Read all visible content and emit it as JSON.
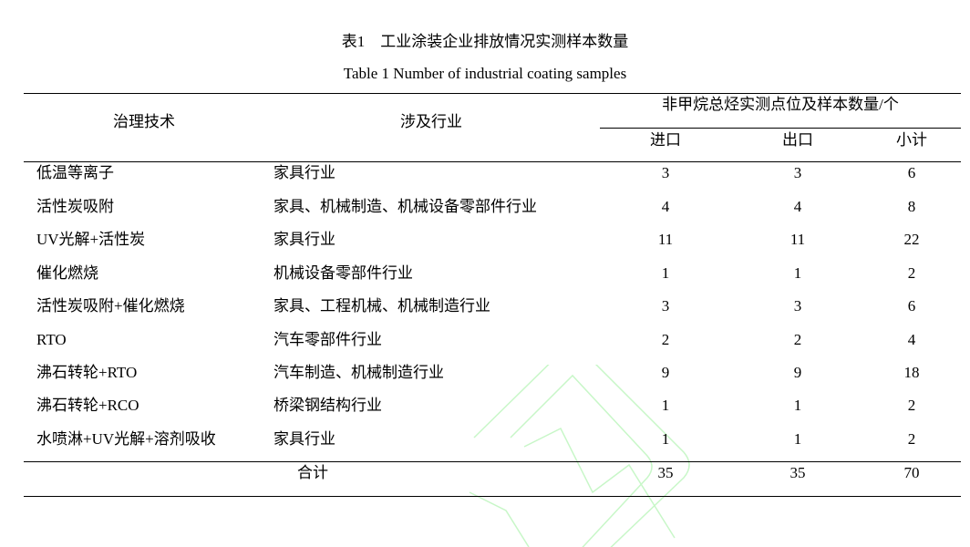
{
  "caption": {
    "cn": "表1　工业涂装企业排放情况实测样本数量",
    "en": "Table 1 Number of industrial coating samples"
  },
  "header": {
    "tech": "治理技术",
    "industry": "涉及行业",
    "group": "非甲烷总烃实测点位及样本数量/个",
    "inlet": "进口",
    "outlet": "出口",
    "subtotal": "小计"
  },
  "rows": [
    {
      "tech": "低温等离子",
      "industry": "家具行业",
      "inlet": "3",
      "outlet": "3",
      "subtotal": "6"
    },
    {
      "tech": "活性炭吸附",
      "industry": "家具、机械制造、机械设备零部件行业",
      "inlet": "4",
      "outlet": "4",
      "subtotal": "8"
    },
    {
      "tech": "UV光解+活性炭",
      "industry": "家具行业",
      "inlet": "11",
      "outlet": "11",
      "subtotal": "22"
    },
    {
      "tech": "催化燃烧",
      "industry": "机械设备零部件行业",
      "inlet": "1",
      "outlet": "1",
      "subtotal": "2"
    },
    {
      "tech": "活性炭吸附+催化燃烧",
      "industry": "家具、工程机械、机械制造行业",
      "inlet": "3",
      "outlet": "3",
      "subtotal": "6"
    },
    {
      "tech": "RTO",
      "industry": "汽车零部件行业",
      "inlet": "2",
      "outlet": "2",
      "subtotal": "4"
    },
    {
      "tech": "沸石转轮+RTO",
      "industry": "汽车制造、机械制造行业",
      "inlet": "9",
      "outlet": "9",
      "subtotal": "18"
    },
    {
      "tech": "沸石转轮+RCO",
      "industry": "桥梁钢结构行业",
      "inlet": "1",
      "outlet": "1",
      "subtotal": "2"
    },
    {
      "tech": "水喷淋+UV光解+溶剂吸收",
      "industry": "家具行业",
      "inlet": "1",
      "outlet": "1",
      "subtotal": "2"
    }
  ],
  "total": {
    "label": "合计",
    "inlet": "35",
    "outlet": "35",
    "subtotal": "70"
  },
  "watermark_color": "#b8f5b8"
}
